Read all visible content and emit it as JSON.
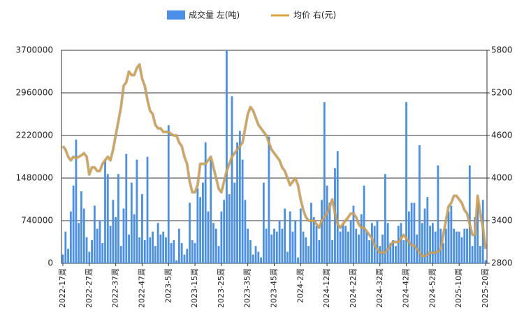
{
  "chart_data": {
    "type": "bar-line",
    "categories": [
      "2022-17周",
      null,
      null,
      null,
      null,
      null,
      null,
      null,
      null,
      null,
      "2022-27周",
      null,
      null,
      null,
      null,
      null,
      null,
      null,
      null,
      null,
      "2022-37周",
      null,
      null,
      null,
      null,
      null,
      null,
      null,
      null,
      null,
      "2022-47周",
      null,
      null,
      null,
      null,
      null,
      null,
      null,
      null,
      null,
      "2023-5周",
      null,
      null,
      null,
      null,
      null,
      null,
      null,
      null,
      null,
      "2023-15周",
      null,
      null,
      null,
      null,
      null,
      null,
      null,
      null,
      null,
      "2023-25周",
      null,
      null,
      null,
      null,
      null,
      null,
      null,
      null,
      null,
      "2023-35周",
      null,
      null,
      null,
      null,
      null,
      null,
      null,
      null,
      null,
      "2023-45周",
      null,
      null,
      null,
      null,
      null,
      null,
      null,
      null,
      null,
      "2024-2周",
      null,
      null,
      null,
      null,
      null,
      null,
      null,
      null,
      null,
      "2024-12周",
      null,
      null,
      null,
      null,
      null,
      null,
      null,
      null,
      null,
      "2024-22周",
      null,
      null,
      null,
      null,
      null,
      null,
      null,
      null,
      null,
      "2024-32周",
      null,
      null,
      null,
      null,
      null,
      null,
      null,
      null,
      null,
      "2024-42周",
      null,
      null,
      null,
      null,
      null,
      null,
      null,
      null,
      null,
      "2024-52周",
      null,
      null,
      null,
      null,
      null,
      null,
      null,
      null,
      null,
      "2025-10周",
      null,
      null,
      null,
      null,
      null,
      null,
      null,
      null,
      null,
      "2025-20周"
    ],
    "series": [
      {
        "name": "成交量 左(吨)",
        "type": "bar",
        "color": "#4a8fe8",
        "values": [
          150000,
          550000,
          250000,
          900000,
          1350000,
          2150000,
          700000,
          1250000,
          950000,
          450000,
          200000,
          400000,
          1000000,
          600000,
          750000,
          350000,
          1800000,
          1550000,
          650000,
          1100000,
          800000,
          1550000,
          300000,
          950000,
          1900000,
          500000,
          1400000,
          850000,
          1800000,
          450000,
          1200000,
          400000,
          1850000,
          450000,
          550000,
          300000,
          700000,
          500000,
          550000,
          450000,
          2400000,
          350000,
          400000,
          50000,
          600000,
          350000,
          150000,
          250000,
          1050000,
          400000,
          350000,
          1300000,
          1150000,
          1400000,
          2100000,
          900000,
          1800000,
          700000,
          600000,
          300000,
          900000,
          1100000,
          3700000,
          1200000,
          2900000,
          1400000,
          2100000,
          2300000,
          1800000,
          1100000,
          600000,
          400000,
          150000,
          300000,
          200000,
          100000,
          1400000,
          600000,
          2200000,
          500000,
          600000,
          550000,
          750000,
          600000,
          950000,
          200000,
          900000,
          550000,
          750000,
          100000,
          950000,
          550000,
          450000,
          300000,
          1050000,
          800000,
          650000,
          400000,
          1100000,
          2800000,
          1350000,
          1050000,
          400000,
          1650000,
          1950000,
          550000,
          700000,
          650000,
          550000,
          750000,
          1000000,
          600000,
          500000,
          850000,
          1350000,
          550000,
          400000,
          700000,
          650000,
          750000,
          300000,
          500000,
          1550000,
          700000,
          350000,
          400000,
          300000,
          650000,
          700000,
          400000,
          2800000,
          900000,
          1050000,
          1050000,
          500000,
          2050000,
          700000,
          950000,
          1150000,
          650000,
          700000,
          550000,
          1700000,
          600000,
          350000,
          600000,
          900000,
          1000000,
          600000,
          550000,
          550000,
          450000,
          600000,
          600000,
          1700000,
          300000,
          800000,
          1100000,
          300000,
          1100000,
          50000
        ]
      },
      {
        "name": "均价 右(元)",
        "type": "line",
        "axis": "y2",
        "color": "#d9a441",
        "values": [
          4450,
          4400,
          4300,
          4250,
          4300,
          4280,
          4300,
          4320,
          4350,
          4300,
          4050,
          4150,
          4150,
          4100,
          4100,
          4200,
          4250,
          4300,
          4250,
          4400,
          4600,
          4800,
          5000,
          5300,
          5350,
          5500,
          5450,
          5450,
          5550,
          5600,
          5400,
          5300,
          5100,
          4950,
          4900,
          4750,
          4700,
          4700,
          4650,
          4650,
          4650,
          4620,
          4600,
          4600,
          4500,
          4450,
          4300,
          4200,
          3950,
          3800,
          3800,
          3900,
          4200,
          4200,
          4200,
          4250,
          4300,
          4150,
          4000,
          3850,
          3800,
          3950,
          4100,
          4200,
          4300,
          4350,
          4400,
          4450,
          4500,
          4700,
          4900,
          5000,
          4950,
          4850,
          4750,
          4700,
          4650,
          4600,
          4500,
          4400,
          4350,
          4300,
          4250,
          4150,
          4100,
          4000,
          3900,
          3950,
          4000,
          3900,
          3700,
          3550,
          3450,
          3400,
          3400,
          3400,
          3350,
          3300,
          3400,
          3450,
          3500,
          3600,
          3700,
          3500,
          3350,
          3300,
          3350,
          3400,
          3450,
          3500,
          3500,
          3450,
          3350,
          3300,
          3300,
          3250,
          3200,
          3150,
          3050,
          3000,
          2950,
          2950,
          2950,
          3000,
          3050,
          3100,
          3100,
          3100,
          3150,
          3200,
          3150,
          3100,
          3050,
          3050,
          3000,
          2950,
          2900,
          2900,
          2920,
          2950,
          2950,
          2950,
          2960,
          3000,
          3200,
          3400,
          3600,
          3650,
          3750,
          3750,
          3700,
          3650,
          3550,
          3500,
          3350,
          3200,
          3200,
          3750,
          3500,
          3300,
          3000
        ]
      }
    ],
    "ylim": [
      0,
      3700000
    ],
    "yticks": [
      0,
      740000,
      1480000,
      2220000,
      2960000,
      3700000
    ],
    "y2lim": [
      2800,
      5800
    ],
    "y2ticks": [
      2800,
      3400,
      4000,
      4600,
      5200,
      5800
    ],
    "grid": true
  }
}
